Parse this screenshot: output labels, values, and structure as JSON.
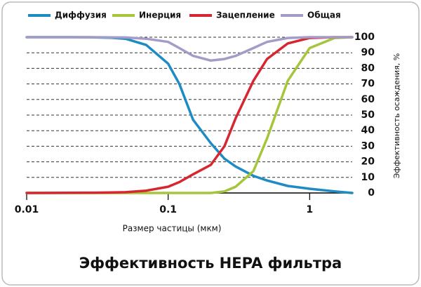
{
  "chart_data": {
    "type": "line",
    "title": "Эффективность HEPA фильтра",
    "x_label": "Размер частицы (мкм)",
    "y_label": "Эффективность осаждения, %",
    "log_x": true,
    "grid": true,
    "legend": "top",
    "xlim": [
      0.01,
      2
    ],
    "xticks": [
      0.01,
      0.1,
      1
    ],
    "ylim": [
      0,
      100
    ],
    "yticks": [
      0,
      10,
      20,
      30,
      40,
      50,
      60,
      70,
      80,
      90,
      100
    ],
    "x": [
      0.01,
      0.02,
      0.03,
      0.04,
      0.05,
      0.07,
      0.1,
      0.12,
      0.15,
      0.2,
      0.25,
      0.3,
      0.4,
      0.5,
      0.7,
      1,
      1.5,
      2
    ],
    "series": [
      {
        "name": "Диффузия",
        "color": "#1e8bc3",
        "values": [
          100,
          100,
          99.9,
          99.6,
          99,
          95,
          83,
          70,
          47,
          32,
          22,
          17,
          11,
          8,
          4.5,
          2.7,
          1,
          0
        ]
      },
      {
        "name": "Инерция",
        "color": "#a5c63b",
        "values": [
          0,
          0,
          0,
          0,
          0,
          0,
          0,
          0,
          0,
          0,
          1,
          4,
          14,
          35,
          72,
          93,
          99.5,
          100
        ]
      },
      {
        "name": "Зацепление",
        "color": "#d7262f",
        "values": [
          0,
          0.1,
          0.2,
          0.3,
          0.5,
          1.5,
          4,
          7,
          12,
          18,
          30,
          48,
          72,
          86,
          96,
          99.5,
          100,
          100
        ]
      },
      {
        "name": "Общая",
        "color": "#a49cc8",
        "values": [
          100,
          100,
          100,
          99.9,
          99.8,
          99,
          97,
          93,
          88,
          85,
          86,
          88,
          93,
          97,
          99.5,
          100,
          100,
          100
        ]
      }
    ]
  }
}
